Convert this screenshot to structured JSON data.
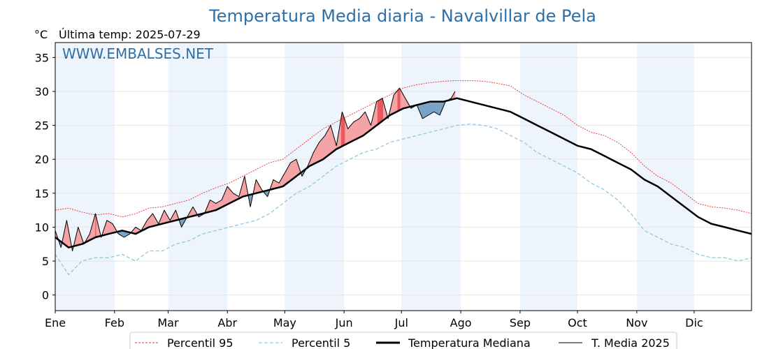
{
  "title": "Temperatura Media diaria - Navalvillar de Pela",
  "unit_label": "°C",
  "last_temp_label": "Última temp: 2025-07-29",
  "watermark": "WWW.EMBALSES.NET",
  "legend": [
    "Percentil 95",
    "Percentil 5",
    "Temperatura Mediana",
    "T. Media 2025"
  ],
  "colors": {
    "title": "#2e6fa7",
    "p95": "#e83030",
    "p5": "#8ccbe0",
    "median": "#000000",
    "actual": "#000000",
    "fill_above": "#f4a3a6",
    "fill_above_p95": "#e8585f",
    "fill_below": "#7aa3c8",
    "fill_below_p5": "#2b6fa3",
    "month_band": "#eef4fb"
  },
  "chart_data": {
    "type": "line",
    "xlabel": "",
    "ylabel": "°C",
    "xlim": [
      1,
      365
    ],
    "ylim": [
      -2.3,
      37.2
    ],
    "yticks": [
      0,
      5,
      10,
      15,
      20,
      25,
      30,
      35
    ],
    "month_labels": [
      "Ene",
      "Feb",
      "Mar",
      "Abr",
      "May",
      "Jun",
      "Jul",
      "Ago",
      "Sep",
      "Oct",
      "Nov",
      "Dic"
    ],
    "month_start_days": [
      1,
      32,
      60,
      91,
      121,
      152,
      182,
      213,
      244,
      274,
      305,
      335
    ],
    "grid": true,
    "legend_position": "bottom",
    "series": [
      {
        "name": "Percentil 95",
        "x": [
          1,
          8,
          15,
          22,
          29,
          36,
          43,
          50,
          57,
          64,
          71,
          78,
          85,
          92,
          99,
          106,
          113,
          120,
          127,
          134,
          141,
          148,
          155,
          162,
          169,
          176,
          183,
          190,
          197,
          204,
          211,
          218,
          225,
          232,
          239,
          246,
          253,
          260,
          267,
          274,
          281,
          288,
          295,
          302,
          309,
          316,
          323,
          330,
          337,
          344,
          351,
          358,
          365
        ],
        "y": [
          12.5,
          12.8,
          12.2,
          11.8,
          12.0,
          11.5,
          12.0,
          12.8,
          13.0,
          13.5,
          14.0,
          15.0,
          15.8,
          16.5,
          17.5,
          18.5,
          19.5,
          20.0,
          21.5,
          23.0,
          24.5,
          25.5,
          26.5,
          27.5,
          28.5,
          29.5,
          30.5,
          31.0,
          31.3,
          31.5,
          31.6,
          31.6,
          31.5,
          31.2,
          30.8,
          29.5,
          28.5,
          27.5,
          26.5,
          25.0,
          24.0,
          23.5,
          22.5,
          21.0,
          19.0,
          17.5,
          16.5,
          15.0,
          13.5,
          13.0,
          12.8,
          12.5,
          12.0
        ]
      },
      {
        "name": "Percentil 5",
        "x": [
          1,
          8,
          15,
          22,
          29,
          36,
          43,
          50,
          57,
          64,
          71,
          78,
          85,
          92,
          99,
          106,
          113,
          120,
          127,
          134,
          141,
          148,
          155,
          162,
          169,
          176,
          183,
          190,
          197,
          204,
          211,
          218,
          225,
          232,
          239,
          246,
          253,
          260,
          267,
          274,
          281,
          288,
          295,
          302,
          309,
          316,
          323,
          330,
          337,
          344,
          351,
          358,
          365
        ],
        "y": [
          6.0,
          3.0,
          5.0,
          5.5,
          5.5,
          6.0,
          5.0,
          6.5,
          6.5,
          7.5,
          8.0,
          9.0,
          9.5,
          10.0,
          10.5,
          11.0,
          12.0,
          13.5,
          15.0,
          16.0,
          17.5,
          19.0,
          20.0,
          21.0,
          21.5,
          22.5,
          23.0,
          23.5,
          24.0,
          24.5,
          25.0,
          25.2,
          25.0,
          24.5,
          23.5,
          22.5,
          21.0,
          20.0,
          19.0,
          18.0,
          16.5,
          15.5,
          14.0,
          12.0,
          9.5,
          8.5,
          7.5,
          7.0,
          6.0,
          5.5,
          5.5,
          5.0,
          5.5
        ]
      },
      {
        "name": "Temperatura Mediana",
        "x": [
          1,
          8,
          15,
          22,
          29,
          36,
          43,
          50,
          57,
          64,
          71,
          78,
          85,
          92,
          99,
          106,
          113,
          120,
          127,
          134,
          141,
          148,
          155,
          162,
          169,
          176,
          183,
          190,
          197,
          204,
          211,
          218,
          225,
          232,
          239,
          246,
          253,
          260,
          267,
          274,
          281,
          288,
          295,
          302,
          309,
          316,
          323,
          330,
          337,
          344,
          351,
          358,
          365
        ],
        "y": [
          8.5,
          7.0,
          7.5,
          8.5,
          9.0,
          9.5,
          9.0,
          10.0,
          10.5,
          11.0,
          11.5,
          12.0,
          12.5,
          13.5,
          14.5,
          15.0,
          15.5,
          16.0,
          17.5,
          19.0,
          20.0,
          21.5,
          22.5,
          23.5,
          25.0,
          26.5,
          27.5,
          28.0,
          28.5,
          28.5,
          29.0,
          28.5,
          28.0,
          27.5,
          27.0,
          26.0,
          25.0,
          24.0,
          23.0,
          22.0,
          21.5,
          20.5,
          19.5,
          18.5,
          17.0,
          16.0,
          14.5,
          13.0,
          11.5,
          10.5,
          10.0,
          9.5,
          9.0
        ]
      },
      {
        "name": "T. Media 2025",
        "x": [
          1,
          4,
          7,
          10,
          13,
          16,
          19,
          22,
          25,
          28,
          31,
          34,
          37,
          40,
          43,
          46,
          49,
          52,
          55,
          58,
          61,
          64,
          67,
          70,
          73,
          76,
          79,
          82,
          85,
          88,
          91,
          94,
          97,
          100,
          103,
          106,
          109,
          112,
          115,
          118,
          121,
          124,
          127,
          130,
          133,
          136,
          139,
          142,
          145,
          148,
          151,
          154,
          157,
          160,
          163,
          166,
          169,
          172,
          175,
          178,
          181,
          184,
          187,
          190,
          193,
          196,
          199,
          202,
          205,
          208,
          210
        ],
        "y": [
          9.5,
          7.0,
          11.0,
          6.5,
          10.0,
          7.5,
          9.0,
          12.0,
          8.5,
          11.0,
          10.5,
          9.0,
          8.5,
          9.0,
          10.0,
          9.5,
          11.0,
          12.0,
          10.5,
          12.5,
          11.0,
          12.5,
          10.0,
          11.5,
          13.0,
          11.5,
          12.0,
          14.0,
          13.5,
          14.0,
          16.0,
          15.0,
          14.5,
          17.5,
          13.0,
          17.0,
          15.5,
          14.5,
          17.0,
          16.5,
          18.0,
          19.5,
          20.0,
          17.5,
          19.0,
          21.0,
          22.5,
          23.5,
          25.0,
          22.0,
          27.0,
          24.5,
          25.5,
          26.0,
          27.0,
          25.0,
          28.5,
          29.0,
          26.0,
          29.5,
          30.5,
          29.0,
          27.5,
          28.0,
          26.0,
          26.5,
          27.0,
          26.5,
          28.5,
          29.0,
          30.0
        ]
      }
    ]
  }
}
